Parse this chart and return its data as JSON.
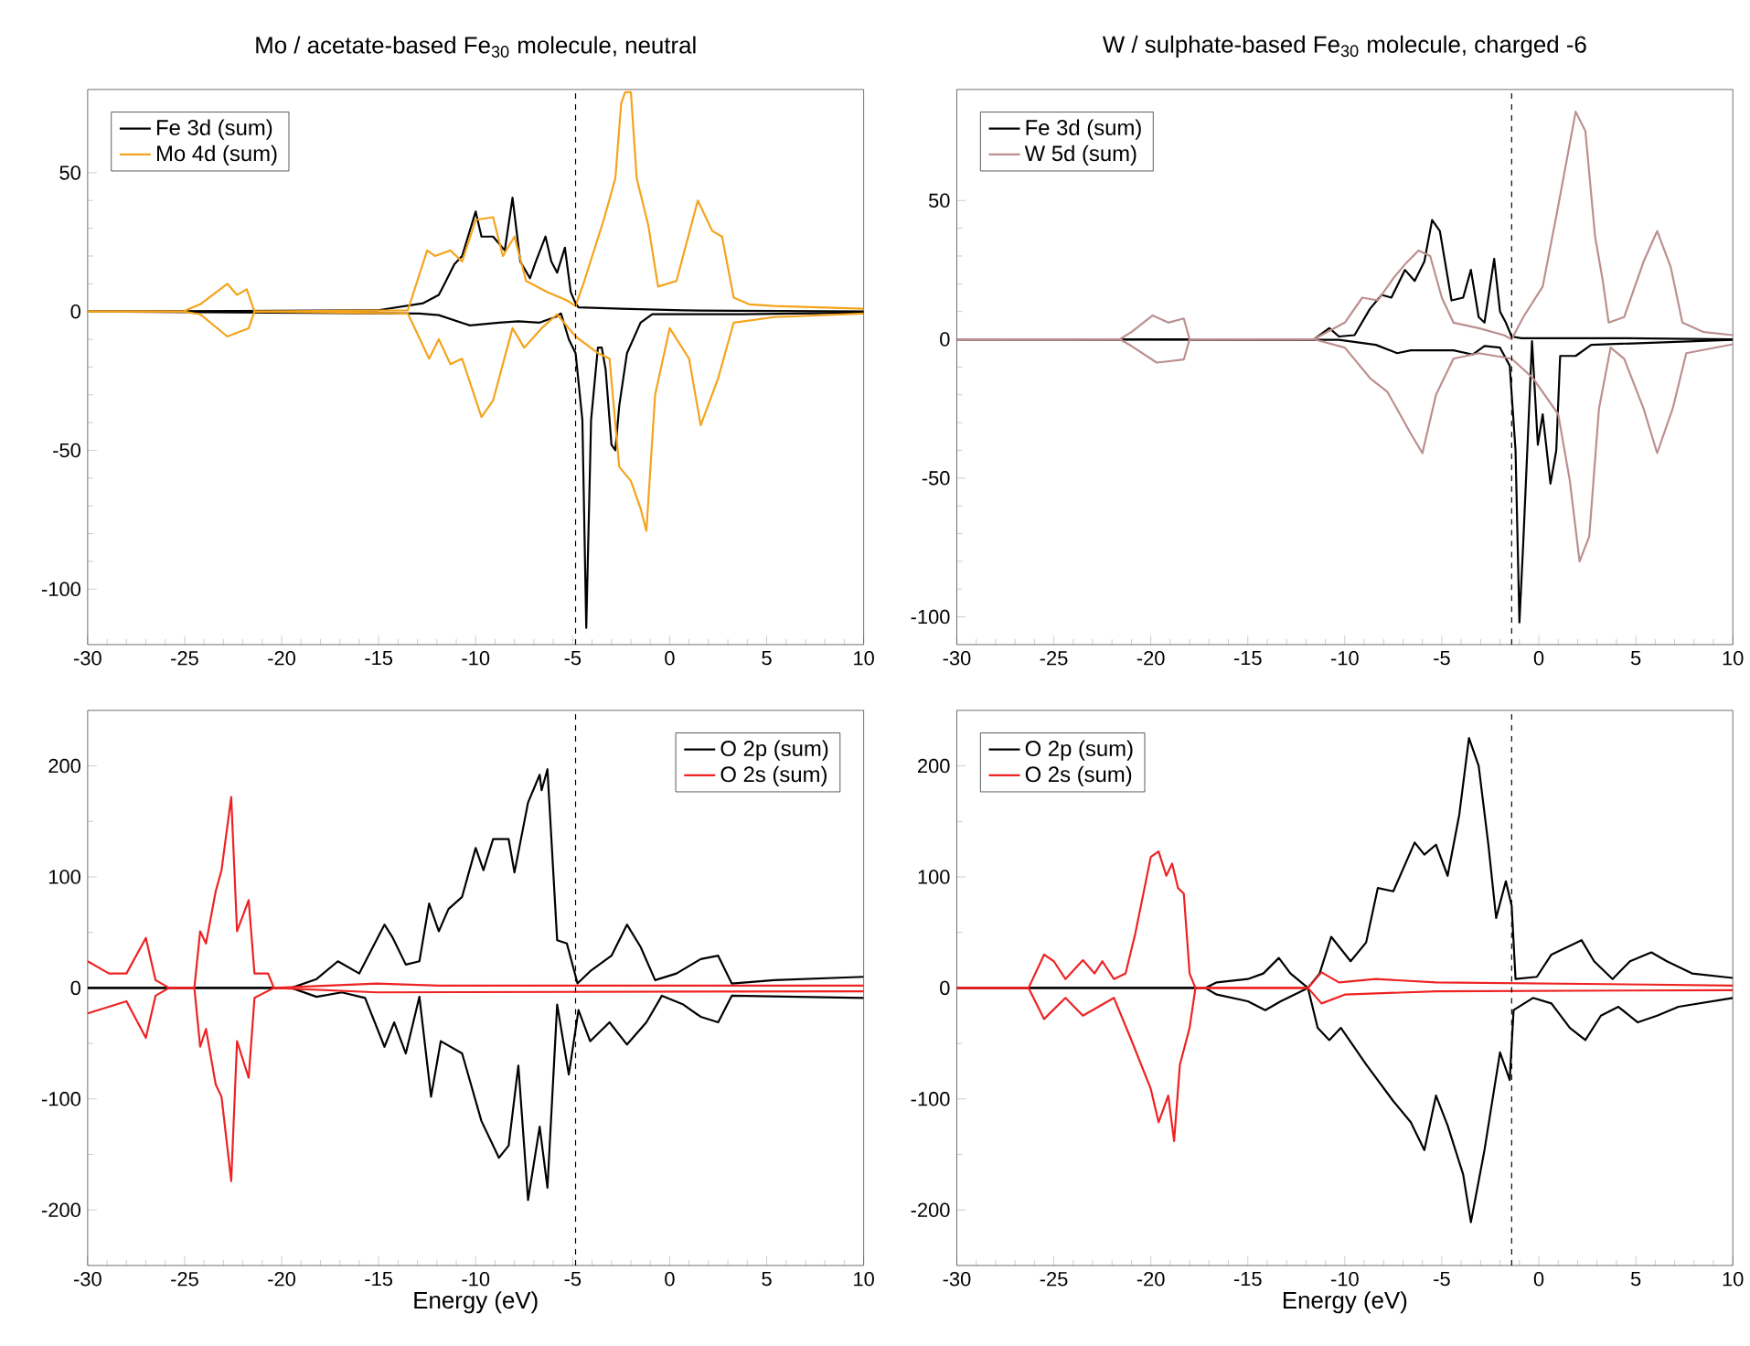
{
  "chart_data": [
    {
      "type": "line",
      "title": "Mo / acetate-based Fe$_{30}$ molecule, neutral",
      "xlim": [
        -30,
        10
      ],
      "ylim": [
        -120,
        80
      ],
      "xticks": [
        -30,
        -25,
        -20,
        -15,
        -10,
        -5,
        0,
        5,
        10
      ],
      "yticks": [
        -100,
        -50,
        0,
        50
      ],
      "legend": "top left",
      "grid": false,
      "line_style": "solid",
      "ref_lines": [
        {
          "axis": "x",
          "value": -4.85,
          "line_style": "dashed",
          "color": "#000000"
        }
      ],
      "series": [
        {
          "name": "Fe 3d (sum)",
          "color": "#000000",
          "x": [
            -30,
            -15.1,
            -12.7,
            -11.9,
            -11.6,
            -11.1,
            -10.7,
            -10.0,
            -9.7,
            -9.1,
            -8.5,
            -8.1,
            -7.7,
            -7.2,
            -6.9,
            -6.4,
            -6.1,
            -5.8,
            -5.4,
            -5.1,
            -4.85,
            -4.7,
            -2.5,
            0.7,
            10
          ],
          "values": [
            0,
            0.4,
            3,
            6,
            10,
            17,
            20,
            36,
            27,
            27,
            22,
            41,
            18,
            12,
            18,
            27,
            18,
            14,
            23,
            7,
            3,
            1.5,
            1,
            0.4,
            0
          ]
        },
        {
          "color": "#000000",
          "x": [
            -30,
            -12.9,
            -11.9,
            -10.3,
            -8.8,
            -7.8,
            -6.7,
            -5.9,
            -5.6,
            -5.2,
            -4.85,
            -4.5,
            -4.3,
            -4.05,
            -3.7,
            -3.5,
            -3.3,
            -3.0,
            -2.8,
            -2.6,
            -2.2,
            -1.5,
            -0.9,
            3.8,
            10
          ],
          "values": [
            0,
            -0.7,
            -1.3,
            -5,
            -4,
            -3.5,
            -4,
            -2,
            -0.7,
            -10,
            -15,
            -39,
            -114,
            -39,
            -13,
            -13,
            -21,
            -48,
            -50,
            -34,
            -15,
            -4,
            -1,
            -1,
            -0.4
          ]
        },
        {
          "name": "Mo 4d (sum)",
          "color": "#f5a31c",
          "x": [
            -30,
            -25.1,
            -24.2,
            -22.8,
            -22.3,
            -21.8,
            -21.4,
            -13.5,
            -12.5,
            -12.1,
            -11.3,
            -10.7,
            -10.0,
            -9.1,
            -8.6,
            -8.0,
            -7.4,
            -6.3,
            -5.3,
            -4.85,
            -4.4,
            -3.4,
            -2.8,
            -2.5,
            -2.3,
            -2.0,
            -1.7,
            -1.1,
            -0.6,
            0.35,
            1.45,
            2.2,
            2.7,
            3.3,
            4.1,
            5.4,
            10
          ],
          "values": [
            0,
            0,
            2.6,
            10,
            6,
            8,
            0,
            0.4,
            22,
            20,
            22,
            18,
            33,
            34,
            20,
            27,
            11,
            7,
            4,
            2,
            11,
            33,
            48,
            75,
            79,
            79,
            48,
            31,
            9,
            11,
            40,
            29,
            27,
            5,
            2.6,
            2,
            1
          ]
        },
        {
          "color": "#f5a31c",
          "x": [
            -30,
            -25.1,
            -24.2,
            -22.8,
            -21.7,
            -21.4,
            -13.5,
            -12.4,
            -11.9,
            -11.3,
            -10.7,
            -9.7,
            -9.1,
            -8.1,
            -7.5,
            -6.6,
            -5.8,
            -4.85,
            -3.7,
            -3.1,
            -2.6,
            -2.0,
            -1.5,
            -1.2,
            -0.75,
            0.0,
            1.0,
            1.6,
            2.5,
            3.3,
            5.4,
            10
          ],
          "values": [
            0,
            0,
            -1,
            -9,
            -6,
            0,
            -0.7,
            -17,
            -10,
            -19,
            -17,
            -38,
            -32,
            -6,
            -13,
            -6,
            -1,
            -9,
            -15,
            -17,
            -56,
            -61,
            -71,
            -79,
            -30,
            -6,
            -17,
            -41,
            -24,
            -4,
            -2,
            -0.7
          ]
        }
      ]
    },
    {
      "type": "line",
      "title": "W / sulphate-based Fe$_{30}$ molecule, charged -6",
      "xlim": [
        -30,
        10
      ],
      "ylim": [
        -110,
        90
      ],
      "xticks": [
        -30,
        -25,
        -20,
        -15,
        -10,
        -5,
        0,
        5,
        10
      ],
      "yticks": [
        -100,
        -50,
        0,
        50
      ],
      "legend": "top left",
      "grid": false,
      "line_style": "solid",
      "ref_lines": [
        {
          "axis": "x",
          "value": -1.4,
          "line_style": "dashed",
          "color": "#000000"
        }
      ],
      "series": [
        {
          "name": "Fe 3d (sum)",
          "color": "#000000",
          "x": [
            -30,
            -11.6,
            -10.8,
            -10.3,
            -9.5,
            -8.7,
            -8.1,
            -7.6,
            -6.9,
            -6.4,
            -5.9,
            -5.5,
            -5.1,
            -4.5,
            -3.9,
            -3.5,
            -3.1,
            -2.8,
            -2.3,
            -2.0,
            -1.7,
            -1.4,
            -0.9,
            4.1,
            10
          ],
          "values": [
            0,
            0,
            4,
            1,
            1.5,
            11,
            16,
            15,
            25,
            21,
            28,
            43,
            39,
            14,
            15,
            25,
            8,
            6,
            29,
            10,
            6,
            1,
            0.4,
            0.4,
            0
          ]
        },
        {
          "color": "#000000",
          "x": [
            -30,
            -10.3,
            -8.4,
            -7.3,
            -6.6,
            -4.4,
            -3.4,
            -2.8,
            -2.0,
            -1.5,
            -1.2,
            -1.0,
            -0.8,
            -0.35,
            -0.05,
            0.2,
            0.6,
            0.9,
            1.1,
            1.9,
            2.7,
            10
          ],
          "values": [
            0,
            -0.2,
            -2,
            -5,
            -4,
            -4,
            -5.5,
            -2.4,
            -3,
            -9.5,
            -40,
            -102,
            -73,
            -0.7,
            -38,
            -27,
            -52,
            -40,
            -6,
            -6,
            -2,
            -0.2
          ]
        },
        {
          "name": "W 5d (sum)",
          "color": "#bc8f8f",
          "x": [
            -30,
            -21.6,
            -21.0,
            -19.9,
            -19.1,
            -18.3,
            -18.0,
            -11.6,
            -10.0,
            -9.1,
            -8.3,
            -7.5,
            -6.9,
            -6.2,
            -5.6,
            -5.0,
            -4.4,
            -3.1,
            -1.8,
            -1.4,
            -0.8,
            0.2,
            1.0,
            1.9,
            2.4,
            2.9,
            3.3,
            3.6,
            4.4,
            5.4,
            6.1,
            6.8,
            7.4,
            8.5,
            10
          ],
          "values": [
            0,
            0,
            2.6,
            8.6,
            6,
            7.5,
            0,
            0,
            6,
            15,
            14,
            22,
            27,
            32,
            30,
            15,
            6,
            4,
            1.5,
            0,
            8,
            19,
            48,
            82,
            75,
            37,
            21,
            6,
            8,
            28,
            39,
            26,
            6,
            2.6,
            1.5
          ]
        },
        {
          "color": "#bc8f8f",
          "x": [
            -30,
            -21.6,
            -21.0,
            -19.7,
            -18.3,
            -18.0,
            -11.6,
            -10.0,
            -8.7,
            -7.8,
            -6.6,
            -6.0,
            -5.3,
            -4.4,
            -3.1,
            -1.4,
            -0.3,
            1.0,
            1.6,
            2.1,
            2.6,
            3.1,
            3.7,
            4.4,
            5.4,
            6.1,
            6.9,
            7.6,
            10
          ],
          "values": [
            0,
            0,
            -2.4,
            -8.4,
            -7.3,
            0,
            0,
            -3,
            -14,
            -19,
            -34,
            -41,
            -20,
            -7,
            -5,
            -7,
            -14,
            -27,
            -51,
            -80,
            -71,
            -25,
            -3,
            -7,
            -25,
            -41,
            -25,
            -5,
            -1.8
          ]
        }
      ]
    },
    {
      "type": "line",
      "xlabel": "Energy (eV)",
      "xlim": [
        -30,
        10
      ],
      "ylim": [
        -250,
        250
      ],
      "xticks": [
        -30,
        -25,
        -20,
        -15,
        -10,
        -5,
        0,
        5,
        10
      ],
      "yticks": [
        -200,
        -100,
        0,
        100,
        200
      ],
      "legend": "top right",
      "grid": false,
      "line_style": "solid",
      "ref_lines": [
        {
          "axis": "x",
          "value": -4.85,
          "line_style": "dashed",
          "color": "#000000"
        }
      ],
      "series": [
        {
          "name": "O 2p (sum)",
          "color": "#000000",
          "x": [
            -30,
            -19.5,
            -18.2,
            -17.1,
            -16.0,
            -14.7,
            -14.3,
            -13.6,
            -12.9,
            -12.4,
            -11.9,
            -11.4,
            -10.7,
            -10.0,
            -9.6,
            -9.1,
            -8.3,
            -8.0,
            -7.3,
            -6.7,
            -6.6,
            -6.3,
            -5.8,
            -5.3,
            -4.75,
            -4.1,
            -3.0,
            -2.2,
            -1.5,
            -0.75,
            0.35,
            1.6,
            2.5,
            3.2,
            5.4,
            10
          ],
          "values": [
            0,
            0,
            8,
            24,
            13,
            57,
            46,
            21,
            24,
            76,
            51,
            71,
            82,
            126,
            106,
            134,
            134,
            104,
            167,
            192,
            178,
            197,
            43,
            40,
            4,
            15,
            29,
            57,
            37,
            7,
            13,
            26,
            29,
            4,
            7,
            10
          ]
        },
        {
          "color": "#000000",
          "x": [
            -30,
            -19.5,
            -18.2,
            -16.9,
            -15.7,
            -14.7,
            -14.2,
            -13.6,
            -12.9,
            -12.3,
            -11.8,
            -10.7,
            -9.7,
            -8.8,
            -8.3,
            -7.8,
            -7.3,
            -6.7,
            -6.3,
            -5.8,
            -5.2,
            -4.7,
            -4.1,
            -3.1,
            -2.2,
            -1.2,
            -0.4,
            0.7,
            1.6,
            2.5,
            3.2,
            10
          ],
          "values": [
            0,
            0,
            -8,
            -4,
            -9,
            -53,
            -31,
            -59,
            -8,
            -98,
            -48,
            -59,
            -120,
            -153,
            -142,
            -70,
            -191,
            -125,
            -180,
            -15,
            -78,
            -20,
            -48,
            -31,
            -51,
            -31,
            -7,
            -15,
            -26,
            -31,
            -7,
            -9
          ]
        },
        {
          "name": "O 2s (sum)",
          "color": "#ee2222",
          "x": [
            -30,
            -28.9,
            -28,
            -27,
            -26.5,
            -25.8,
            -24.5,
            -24.2,
            -23.9,
            -23.4,
            -23.1,
            -22.6,
            -22.3,
            -21.7,
            -21.4,
            -20.7,
            -20.4,
            -15.1,
            -11.9,
            10
          ],
          "values": [
            24,
            13,
            13,
            45,
            7,
            0,
            0,
            51,
            40,
            87,
            106,
            172,
            51,
            79,
            13,
            13,
            0,
            4,
            2,
            2
          ]
        },
        {
          "color": "#ee2222",
          "x": [
            -30,
            -28,
            -27,
            -26.5,
            -25.8,
            -24.5,
            -24.2,
            -23.9,
            -23.4,
            -23.1,
            -22.6,
            -22.3,
            -21.7,
            -21.4,
            -20.4,
            -15.1,
            10
          ],
          "values": [
            -23,
            -12,
            -45,
            -7,
            0,
            0,
            -53,
            -37,
            -87,
            -98,
            -174,
            -48,
            -81,
            -9,
            0,
            -4,
            -3
          ]
        }
      ]
    },
    {
      "type": "line",
      "xlabel": "Energy (eV)",
      "xlim": [
        -30,
        10
      ],
      "ylim": [
        -250,
        250
      ],
      "xticks": [
        -30,
        -25,
        -20,
        -15,
        -10,
        -5,
        0,
        5,
        10
      ],
      "yticks": [
        -200,
        -100,
        0,
        100,
        200
      ],
      "legend": "top left",
      "grid": false,
      "line_style": "solid",
      "ref_lines": [
        {
          "axis": "x",
          "value": -1.4,
          "line_style": "dashed",
          "color": "#000000"
        }
      ],
      "series": [
        {
          "name": "O 2p (sum)",
          "color": "#000000",
          "x": [
            -30,
            -17.2,
            -16.6,
            -15.0,
            -14.2,
            -13.4,
            -12.8,
            -11.9,
            -11.3,
            -10.7,
            -9.7,
            -8.9,
            -8.3,
            -7.5,
            -6.4,
            -5.9,
            -5.3,
            -4.7,
            -4.1,
            -3.6,
            -3.1,
            -2.6,
            -2.2,
            -1.7,
            -1.4,
            -1.2,
            -0.1,
            0.65,
            2.2,
            2.85,
            3.8,
            4.7,
            5.8,
            6.6,
            7.9,
            10
          ],
          "values": [
            0,
            0,
            5,
            8,
            13,
            27,
            13,
            0,
            13,
            46,
            24,
            41,
            90,
            87,
            131,
            120,
            129,
            101,
            156,
            225,
            200,
            129,
            63,
            96,
            74,
            8,
            10,
            30,
            43,
            24,
            8,
            24,
            32,
            24,
            13,
            9
          ]
        },
        {
          "color": "#000000",
          "x": [
            -30,
            -17.2,
            -16.6,
            -15.0,
            -14.1,
            -13.3,
            -11.9,
            -11.4,
            -10.8,
            -10.2,
            -8.9,
            -7.5,
            -6.6,
            -5.9,
            -5.3,
            -4.7,
            -3.9,
            -3.5,
            -2.8,
            -2.0,
            -1.5,
            -1.3,
            -0.3,
            0.65,
            1.6,
            2.4,
            3.2,
            4.1,
            5.1,
            6.1,
            7.2,
            10
          ],
          "values": [
            0,
            0,
            -6,
            -12,
            -20,
            -12,
            0,
            -36,
            -47,
            -36,
            -69,
            -102,
            -121,
            -146,
            -97,
            -124,
            -168,
            -211,
            -146,
            -58,
            -83,
            -20,
            -9,
            -14,
            -36,
            -47,
            -25,
            -17,
            -31,
            -25,
            -17,
            -9
          ]
        },
        {
          "name": "O 2s (sum)",
          "color": "#ee2222",
          "x": [
            -30,
            -26.3,
            -25.5,
            -25.0,
            -24.4,
            -23.5,
            -22.9,
            -22.5,
            -21.9,
            -21.3,
            -20.8,
            -20.0,
            -19.6,
            -19.2,
            -18.9,
            -18.6,
            -18.3,
            -18.0,
            -17.7,
            -11.9,
            -11.2,
            -10.3,
            -8.4,
            -5.3,
            5.7,
            10
          ],
          "values": [
            0,
            0,
            30,
            24,
            8,
            25,
            13,
            24,
            8,
            13,
            49,
            118,
            123,
            101,
            112,
            90,
            85,
            13,
            0,
            0,
            14,
            5,
            8,
            5,
            3,
            2
          ]
        },
        {
          "color": "#ee2222",
          "x": [
            -30,
            -26.3,
            -25.5,
            -24.4,
            -23.5,
            -21.9,
            -21.0,
            -20.0,
            -19.6,
            -19.1,
            -18.8,
            -18.5,
            -18.0,
            -17.7,
            -11.9,
            -11.2,
            -10.0,
            -5.3,
            10
          ],
          "values": [
            0,
            0,
            -28,
            -9,
            -25,
            -9,
            -47,
            -91,
            -121,
            -97,
            -138,
            -69,
            -36,
            0,
            0,
            -14,
            -6,
            -3,
            -2
          ]
        }
      ]
    }
  ]
}
